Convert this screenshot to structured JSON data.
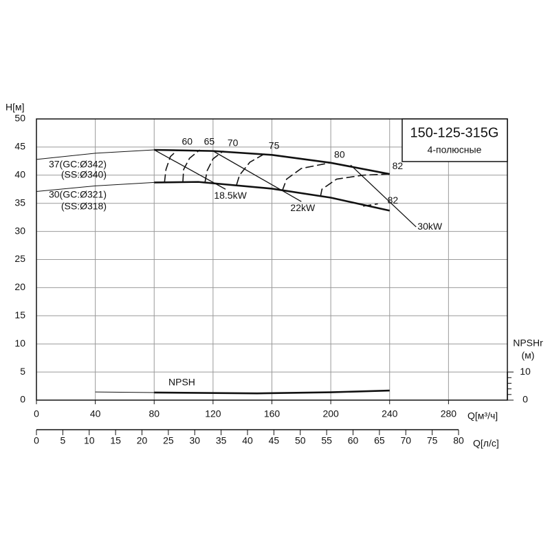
{
  "chart_data": {
    "type": "line",
    "title": "150-125-315G",
    "subtitle": "4-полюсные",
    "ylabel": "H[м]",
    "xlabel": "Q[м³/ч]",
    "x2label": "Q[л/с]",
    "y2label": [
      "NPSHr",
      "(м)"
    ],
    "xlim": [
      0,
      320
    ],
    "xticks": [
      0,
      40,
      80,
      120,
      160,
      200,
      240,
      280
    ],
    "ylim": [
      0,
      50
    ],
    "yticks": [
      0,
      5,
      10,
      15,
      20,
      25,
      30,
      35,
      40,
      45,
      50
    ],
    "x2lim": [
      0,
      80
    ],
    "x2ticks": [
      0,
      5,
      10,
      15,
      20,
      25,
      30,
      35,
      40,
      45,
      50,
      55,
      60,
      65,
      70,
      75,
      80
    ],
    "y2lim": [
      0,
      100
    ],
    "y2ticks": [
      0,
      10
    ],
    "y2minorticks": [
      2,
      4,
      6,
      8
    ],
    "grid": true,
    "color": "#111111",
    "series": [
      {
        "labels": [
          "37(GC:Ø342)",
          "(SS:Ø340)"
        ],
        "segments": [
          {
            "style": "thin",
            "x": [
              0,
              40,
              80
            ],
            "values": [
              42.8,
              43.9,
              44.5
            ]
          },
          {
            "style": "thick",
            "x": [
              80,
              120,
              160,
              200,
              240
            ],
            "values": [
              44.5,
              44.3,
              43.6,
              42.2,
              40.2
            ]
          }
        ]
      },
      {
        "labels": [
          "30(GC:Ø321)",
          "(SS:Ø318)"
        ],
        "segments": [
          {
            "style": "thin",
            "x": [
              0,
              40,
              80
            ],
            "values": [
              37.1,
              38.1,
              38.7
            ]
          },
          {
            "style": "thick",
            "x": [
              80,
              110,
              160,
              200,
              240
            ],
            "values": [
              38.7,
              38.8,
              37.6,
              36,
              33.7
            ]
          }
        ]
      },
      {
        "labels": [
          "NPSH"
        ],
        "axis": "y2",
        "segments": [
          {
            "style": "thin",
            "x": [
              40,
              80
            ],
            "values": [
              2.9,
              2.7
            ]
          },
          {
            "style": "thick",
            "x": [
              80,
              150,
              200,
              240
            ],
            "values": [
              2.7,
              2.4,
              2.8,
              3.4
            ]
          }
        ]
      }
    ],
    "efficiency": [
      {
        "label": "60",
        "x": [
          87,
          88,
          91,
          96
        ],
        "values": [
          38.7,
          41,
          43.3,
          44.5
        ]
      },
      {
        "label": "65",
        "x": [
          99.5,
          100,
          104,
          111
        ],
        "values": [
          38.8,
          41,
          43,
          44.5
        ]
      },
      {
        "label": "70",
        "x": [
          114.5,
          116,
          120,
          127
        ],
        "values": [
          38.7,
          40.8,
          42.9,
          44.3
        ]
      },
      {
        "label": "75",
        "x": [
          136,
          138,
          145,
          155
        ],
        "values": [
          38.3,
          40,
          42.3,
          43.8
        ]
      },
      {
        "label": "80",
        "x": [
          167,
          170,
          180,
          199.5
        ],
        "values": [
          37.2,
          39.3,
          41.2,
          42.2
        ]
      },
      {
        "label": "82",
        "x": [
          193,
          194,
          204,
          222,
          239
        ],
        "values": [
          36.2,
          37.5,
          39.3,
          40,
          40.2
        ]
      },
      {
        "label": "82",
        "x": [
          222,
          232
        ],
        "values": [
          34.5,
          34.9
        ]
      }
    ],
    "power": [
      {
        "label": "18.5kW",
        "x": [
          80,
          128.5
        ],
        "values": [
          44.5,
          37.5
        ]
      },
      {
        "label": "22kW",
        "x": [
          120,
          180
        ],
        "values": [
          44.3,
          35.3
        ]
      },
      {
        "label": "30kW",
        "x": [
          213.5,
          258
        ],
        "values": [
          41.8,
          30.8
        ]
      }
    ]
  }
}
